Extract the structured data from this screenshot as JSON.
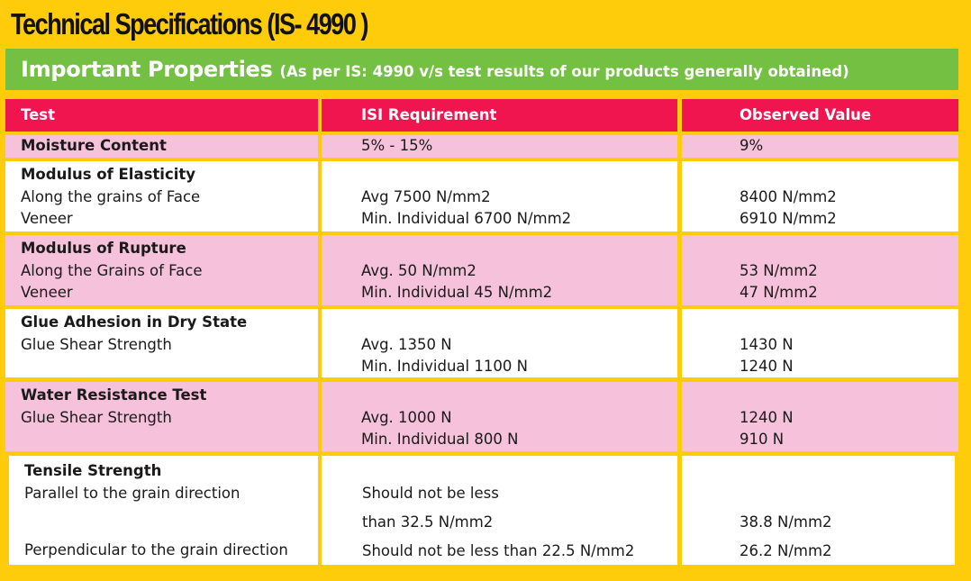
{
  "title": "Technical Specifications (IS- 4990 )",
  "banner": {
    "heading": "Important Properties",
    "subheading": "(As per IS: 4990 v/s test results of our products generally obtained)"
  },
  "colors": {
    "page_background": "#fecc0a",
    "banner_green": "#74c043",
    "header_red": "#f0154f",
    "row_pink": "#f6c1da",
    "row_white": "#ffffff"
  },
  "table": {
    "headers": [
      "Test",
      "ISI Requirement",
      "Observed Value"
    ],
    "rows": [
      {
        "test": [
          "Moisture Content"
        ],
        "requirement": [
          "5%  -  15%"
        ],
        "observed": [
          "9%"
        ]
      },
      {
        "test": [
          "Modulus of Elasticity",
          "Along the grains of Face",
          "Veneer"
        ],
        "requirement": [
          "",
          "Avg  7500 N/mm2",
          "Min. Individual  6700 N/mm2"
        ],
        "observed": [
          "",
          "8400 N/mm2",
          "6910 N/mm2"
        ]
      },
      {
        "test": [
          "Modulus of Rupture",
          "Along the Grains of Face",
          "Veneer"
        ],
        "requirement": [
          "",
          "Avg. 50 N/mm2",
          "Min. Individual  45 N/mm2"
        ],
        "observed": [
          "",
          "53 N/mm2",
          "47 N/mm2"
        ]
      },
      {
        "test": [
          "Glue Adhesion in Dry State",
          "Glue Shear Strength",
          ""
        ],
        "requirement": [
          "",
          "Avg. 1350 N",
          "Min. Individual  1100 N"
        ],
        "observed": [
          "",
          "1430 N",
          "1240 N"
        ]
      },
      {
        "test": [
          "Water Resistance Test",
          "Glue Shear Strength",
          ""
        ],
        "requirement": [
          "",
          "Avg. 1000 N",
          "Min. Individual   800 N"
        ],
        "observed": [
          "",
          "1240 N",
          "910 N"
        ]
      },
      {
        "test": [
          "Tensile Strength",
          "Parallel to the grain direction",
          "",
          "Perpendicular to the  grain direction"
        ],
        "requirement": [
          "",
          "Should not be less",
          "than  32.5 N/mm2",
          "Should not be less than 22.5 N/mm2"
        ],
        "observed": [
          "",
          "",
          "38.8 N/mm2",
          "26.2 N/mm2"
        ]
      }
    ]
  }
}
